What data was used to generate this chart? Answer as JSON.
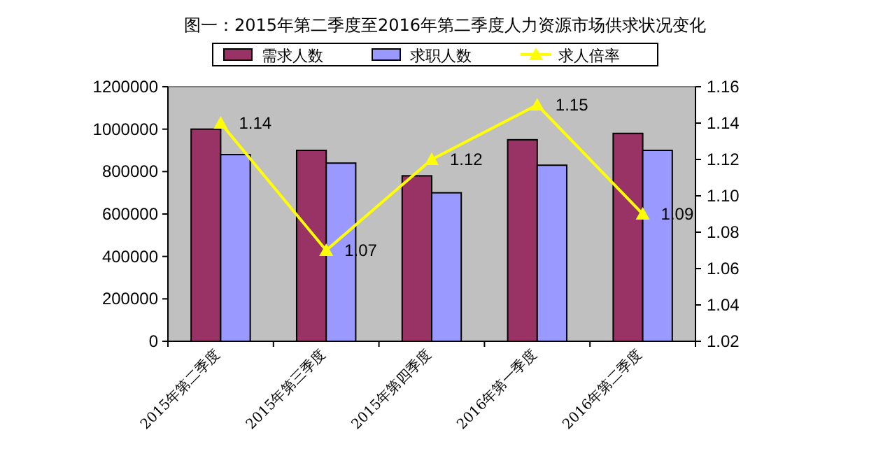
{
  "chart_data": {
    "type": "bar",
    "title": "图一：2015年第二季度至2016年第二季度人力资源市场供求状况变化",
    "categories": [
      "2015年第二季度",
      "2015年第三季度",
      "2015年第四季度",
      "2016年第一季度",
      "2016年第二季度"
    ],
    "series": [
      {
        "name": "需求人数",
        "color": "#993366",
        "values": [
          1000000,
          900000,
          780000,
          950000,
          980000
        ]
      },
      {
        "name": "求职人数",
        "color": "#9999ff",
        "values": [
          880000,
          840000,
          700000,
          830000,
          900000
        ]
      },
      {
        "name": "求人倍率",
        "color": "#ffff00",
        "type": "line",
        "axis": "y2",
        "marker": "triangle",
        "data_labels": true,
        "values": [
          1.14,
          1.07,
          1.12,
          1.15,
          1.09
        ]
      }
    ],
    "ylim": [
      0,
      1200000
    ],
    "yticks": [
      0,
      200000,
      400000,
      600000,
      800000,
      1000000,
      1200000
    ],
    "y2lim": [
      1.02,
      1.16
    ],
    "y2ticks": [
      1.02,
      1.04,
      1.06,
      1.08,
      {
        "value": 1.1,
        "label": "1.10"
      },
      1.12,
      1.14,
      1.16
    ],
    "legend": "top",
    "grid": false
  }
}
